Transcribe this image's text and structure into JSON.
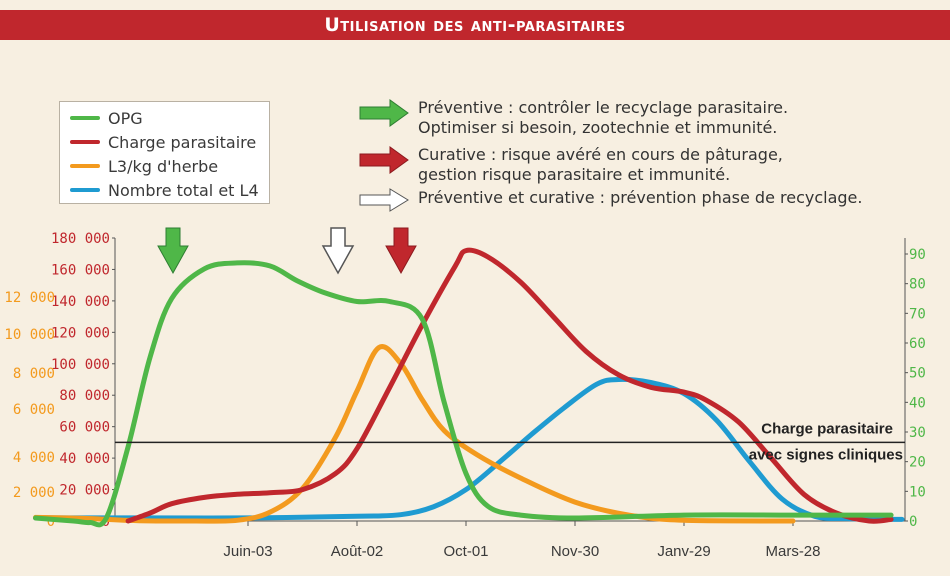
{
  "title": "Utilisation des anti-parasitaires",
  "legend": [
    {
      "label": "OPG",
      "color": "#4fb748"
    },
    {
      "label": "Charge parasitaire",
      "color": "#c0272d"
    },
    {
      "label": "L3/kg d'herbe",
      "color": "#f39a1e"
    },
    {
      "label": "Nombre total et L4",
      "color": "#1f9bd1"
    }
  ],
  "notes": [
    {
      "arrow": "green",
      "lines": [
        "Préventive : contrôler le recyclage parasitaire.",
        "Optimiser si besoin, zootechnie et immunité."
      ]
    },
    {
      "arrow": "red",
      "lines": [
        "Curative : risque avéré en cours de pâturage,",
        "gestion risque parasitaire et immunité."
      ]
    },
    {
      "arrow": "white",
      "lines": [
        "Préventive et curative : prévention phase de recyclage."
      ]
    }
  ],
  "threshold": {
    "value": 50000,
    "lines": [
      "Charge parasitaire",
      "avec signes cliniques"
    ]
  },
  "chart_data": {
    "type": "line",
    "title": "Utilisation des anti-parasitaires",
    "x_ticks": [
      "Juin-03",
      "Août-02",
      "Oct-01",
      "Nov-30",
      "Janv-29",
      "Mars-28"
    ],
    "x_tick_positions": [
      1,
      2,
      3,
      4,
      5,
      6
    ],
    "xlim": [
      -0.95,
      7
    ],
    "y_left": {
      "ticks": [
        0,
        20000,
        40000,
        60000,
        80000,
        100000,
        120000,
        140000,
        160000,
        180000
      ],
      "ylim": [
        0,
        180000
      ],
      "color": "#c0272d"
    },
    "y_orange": {
      "ticks": [
        0,
        2000,
        4000,
        6000,
        8000,
        10000,
        12000
      ],
      "color": "#f39a1e"
    },
    "y_right": {
      "ticks": [
        0,
        10,
        20,
        30,
        40,
        50,
        60,
        70,
        80,
        90
      ],
      "ylim": [
        0,
        90
      ],
      "color": "#4fb748"
    },
    "series": [
      {
        "name": "OPG",
        "color": "#4fb748",
        "axis": "right",
        "x": [
          -0.95,
          -0.6,
          -0.45,
          -0.3,
          -0.1,
          0.1,
          0.3,
          0.6,
          0.9,
          1.2,
          1.45,
          1.7,
          2.0,
          2.3,
          2.6,
          2.8,
          3.0,
          3.2,
          3.5,
          4.0,
          5.0,
          6.0,
          6.9
        ],
        "y": [
          1,
          0,
          -0.5,
          1,
          25,
          55,
          75,
          85,
          87,
          86,
          81,
          77,
          74,
          74,
          68,
          40,
          16,
          5,
          2,
          1,
          2,
          2,
          2
        ]
      },
      {
        "name": "Charge parasitaire",
        "color": "#c0272d",
        "axis": "left",
        "x": [
          -0.1,
          0.1,
          0.3,
          0.6,
          0.9,
          1.2,
          1.5,
          1.8,
          2.0,
          2.3,
          2.6,
          2.9,
          3.0,
          3.2,
          3.5,
          3.8,
          4.1,
          4.4,
          4.7,
          5.0,
          5.2,
          5.5,
          5.8,
          6.1,
          6.4,
          6.7,
          6.9
        ],
        "y": [
          0,
          5000,
          11000,
          15000,
          17000,
          18000,
          20000,
          30000,
          46000,
          85000,
          125000,
          162000,
          172000,
          168000,
          152000,
          130000,
          108000,
          93000,
          85000,
          82000,
          77000,
          63000,
          40000,
          17000,
          5000,
          0,
          1000
        ]
      },
      {
        "name": "L3/kg d'herbe",
        "color": "#f39a1e",
        "axis": "orange",
        "x": [
          -0.95,
          -0.5,
          0.0,
          0.5,
          0.9,
          1.2,
          1.5,
          1.8,
          2.0,
          2.2,
          2.4,
          2.6,
          2.8,
          3.1,
          3.5,
          4.0,
          4.5,
          5.0,
          6.0
        ],
        "y": [
          250,
          180,
          20,
          0,
          50,
          600,
          2200,
          4800,
          7000,
          9300,
          8500,
          6500,
          5100,
          4100,
          2800,
          1300,
          400,
          50,
          0
        ]
      },
      {
        "name": "Nombre total et L4",
        "color": "#1f9bd1",
        "axis": "left",
        "x": [
          -0.95,
          0.0,
          1.0,
          2.0,
          2.4,
          2.7,
          3.0,
          3.3,
          3.6,
          3.9,
          4.2,
          4.4,
          4.7,
          5.0,
          5.3,
          5.6,
          5.9,
          6.2,
          6.5,
          7.0
        ],
        "y": [
          2000,
          2000,
          2000,
          3000,
          4000,
          9000,
          20000,
          37000,
          55000,
          72000,
          87000,
          90000,
          88000,
          81000,
          64000,
          38000,
          14000,
          3000,
          1500,
          1000
        ]
      }
    ]
  }
}
